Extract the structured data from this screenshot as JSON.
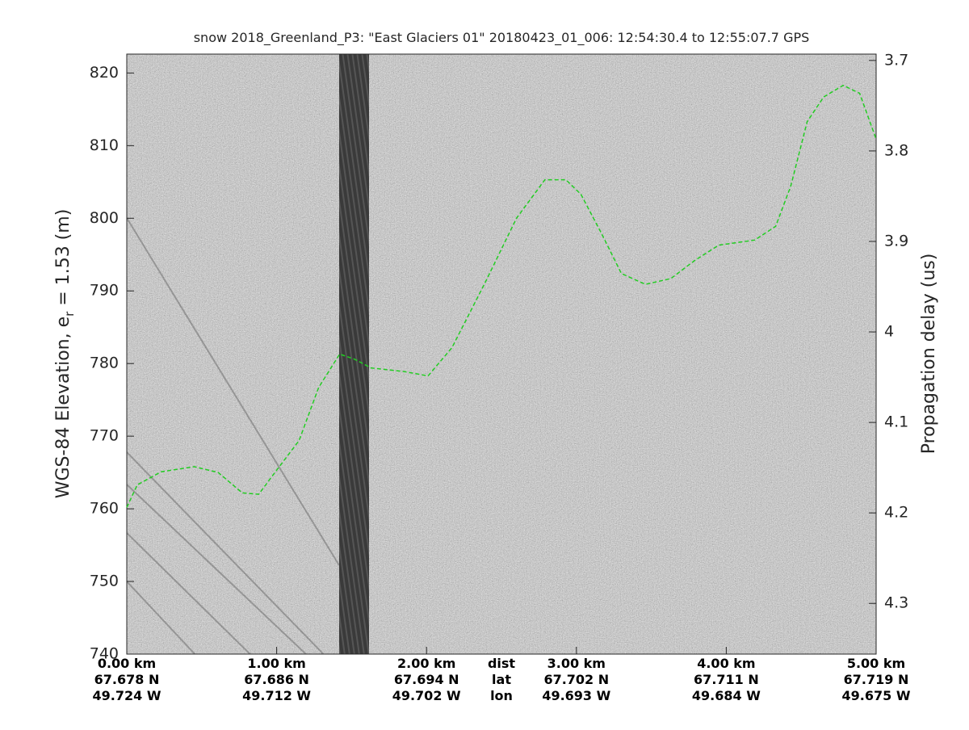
{
  "chart_data": {
    "type": "line",
    "title": "snow 2018_Greenland_P3: \"East Glaciers 01\"  20180423_01_006: 12:54:30.4 to 12:55:07.7 GPS",
    "ylabel": "WGS-84 Elevation, e",
    "ylabel_sub": "r",
    "ylabel_rest": " = 1.53 (m)",
    "y2label": "Propagation delay (us)",
    "xlim": [
      0,
      5.0
    ],
    "ylim": [
      740,
      822.6
    ],
    "y2lim": [
      3.693,
      4.356
    ],
    "xticks": [
      {
        "value": 0,
        "label": "0.00 km"
      },
      {
        "value": 1,
        "label": "1.00 km"
      },
      {
        "value": 2,
        "label": "2.00 km"
      },
      {
        "value": 3,
        "label": "3.00 km"
      },
      {
        "value": 4,
        "label": "4.00 km"
      },
      {
        "value": 5,
        "label": "5.00 km"
      }
    ],
    "lat_labels": [
      "67.678 N",
      "67.686 N",
      "67.694 N",
      "67.702 N",
      "67.711 N",
      "67.719 N"
    ],
    "lon_labels": [
      "49.724 W",
      "49.712 W",
      "49.702 W",
      "49.693 W",
      "49.684 W",
      "49.675 W"
    ],
    "row_labels": [
      "dist",
      "lat",
      "lon"
    ],
    "yticks": [
      740,
      750,
      760,
      770,
      780,
      790,
      800,
      810,
      820
    ],
    "y2ticks": [
      3.7,
      3.8,
      3.9,
      4,
      4.1,
      4.2,
      4.3
    ],
    "series": [
      {
        "color": "#22cc22",
        "x": [
          0,
          0.07,
          0.23,
          0.45,
          0.61,
          0.77,
          0.88,
          1.01,
          1.15,
          1.28,
          1.42,
          1.52,
          1.63,
          1.85,
          2.01,
          2.17,
          2.39,
          2.6,
          2.79,
          2.93,
          3.03,
          3.17,
          3.3,
          3.46,
          3.63,
          3.79,
          3.95,
          4.19,
          4.33,
          4.43,
          4.54,
          4.65,
          4.78,
          4.89,
          5.0
        ],
        "values": [
          760.2,
          763.3,
          765.1,
          765.8,
          765,
          762.2,
          762,
          765.6,
          769.4,
          776.7,
          781.3,
          780.6,
          779.4,
          778.9,
          778.3,
          782.2,
          791.1,
          800,
          805.3,
          805.3,
          803.3,
          797.8,
          792.4,
          790.9,
          791.7,
          794.2,
          796.3,
          797,
          798.9,
          804.4,
          813.3,
          816.7,
          818.3,
          817.2,
          810.9
        ]
      }
    ]
  }
}
